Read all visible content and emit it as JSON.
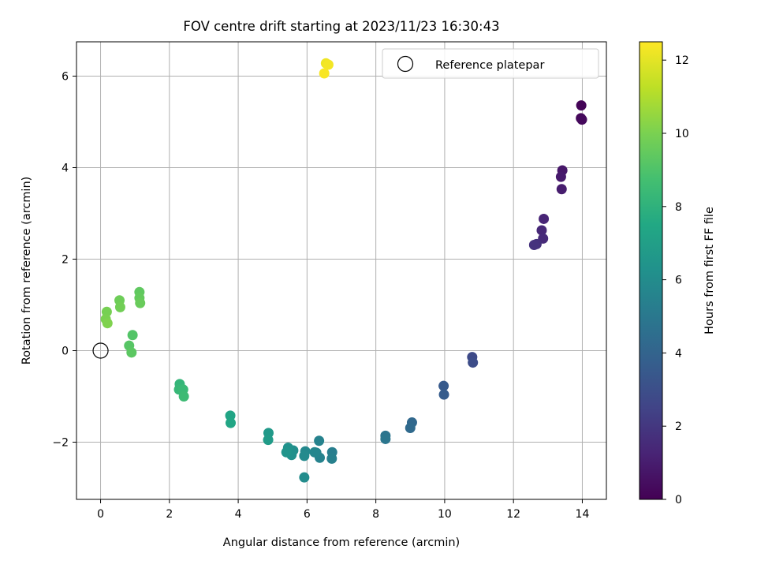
{
  "chart_data": {
    "type": "scatter",
    "title": "FOV centre drift starting at 2023/11/23 16:30:43",
    "xlabel": "Angular distance from reference (arcmin)",
    "ylabel": "Rotation from reference (arcmin)",
    "xlim": [
      -0.7,
      14.7
    ],
    "ylim": [
      -3.25,
      6.75
    ],
    "x_ticks": [
      0,
      2,
      4,
      6,
      8,
      10,
      12,
      14
    ],
    "y_ticks": [
      -2,
      0,
      2,
      4,
      6
    ],
    "grid": true,
    "legend": {
      "position": "top-right",
      "entries": [
        "Reference platepar"
      ]
    },
    "reference_point": {
      "x": 0,
      "y": 0
    },
    "colorbar": {
      "label": "Hours from first FF file",
      "range": [
        0,
        12.5
      ],
      "ticks": [
        0,
        2,
        4,
        6,
        8,
        10,
        12
      ],
      "colormap": "viridis"
    },
    "points": [
      {
        "x": 13.97,
        "y": 5.36,
        "h": 0.1
      },
      {
        "x": 13.96,
        "y": 5.08,
        "h": 0.2
      },
      {
        "x": 13.99,
        "y": 5.05,
        "h": 0.3
      },
      {
        "x": 13.42,
        "y": 3.94,
        "h": 0.8
      },
      {
        "x": 13.38,
        "y": 3.8,
        "h": 0.9
      },
      {
        "x": 13.4,
        "y": 3.53,
        "h": 1.0
      },
      {
        "x": 12.88,
        "y": 2.88,
        "h": 1.3
      },
      {
        "x": 12.82,
        "y": 2.63,
        "h": 1.4
      },
      {
        "x": 12.86,
        "y": 2.45,
        "h": 1.5
      },
      {
        "x": 12.67,
        "y": 2.33,
        "h": 1.7
      },
      {
        "x": 12.6,
        "y": 2.31,
        "h": 1.8
      },
      {
        "x": 10.8,
        "y": -0.14,
        "h": 2.8
      },
      {
        "x": 10.82,
        "y": -0.26,
        "h": 2.9
      },
      {
        "x": 9.97,
        "y": -0.77,
        "h": 3.5
      },
      {
        "x": 9.98,
        "y": -0.96,
        "h": 3.6
      },
      {
        "x": 9.05,
        "y": -1.57,
        "h": 4.2
      },
      {
        "x": 9.0,
        "y": -1.69,
        "h": 4.3
      },
      {
        "x": 8.28,
        "y": -1.86,
        "h": 4.8
      },
      {
        "x": 8.28,
        "y": -1.93,
        "h": 4.9
      },
      {
        "x": 6.73,
        "y": -2.22,
        "h": 5.3
      },
      {
        "x": 6.72,
        "y": -2.36,
        "h": 5.4
      },
      {
        "x": 6.35,
        "y": -1.97,
        "h": 5.5
      },
      {
        "x": 6.37,
        "y": -2.34,
        "h": 5.5
      },
      {
        "x": 6.27,
        "y": -2.23,
        "h": 5.6
      },
      {
        "x": 6.22,
        "y": -2.22,
        "h": 5.7
      },
      {
        "x": 5.95,
        "y": -2.2,
        "h": 5.8
      },
      {
        "x": 5.92,
        "y": -2.3,
        "h": 5.9
      },
      {
        "x": 5.92,
        "y": -2.77,
        "h": 6.0
      },
      {
        "x": 5.6,
        "y": -2.18,
        "h": 6.1
      },
      {
        "x": 5.55,
        "y": -2.28,
        "h": 6.2
      },
      {
        "x": 5.45,
        "y": -2.12,
        "h": 6.3
      },
      {
        "x": 5.4,
        "y": -2.22,
        "h": 6.4
      },
      {
        "x": 4.88,
        "y": -1.8,
        "h": 6.7
      },
      {
        "x": 4.87,
        "y": -1.95,
        "h": 6.8
      },
      {
        "x": 3.77,
        "y": -1.42,
        "h": 7.3
      },
      {
        "x": 3.78,
        "y": -1.58,
        "h": 7.4
      },
      {
        "x": 2.3,
        "y": -0.73,
        "h": 8.2
      },
      {
        "x": 2.28,
        "y": -0.85,
        "h": 8.3
      },
      {
        "x": 2.4,
        "y": -0.85,
        "h": 8.4
      },
      {
        "x": 2.42,
        "y": -1.0,
        "h": 8.5
      },
      {
        "x": 0.93,
        "y": 0.34,
        "h": 9.1
      },
      {
        "x": 0.83,
        "y": 0.11,
        "h": 9.2
      },
      {
        "x": 0.9,
        "y": -0.04,
        "h": 9.3
      },
      {
        "x": 1.13,
        "y": 1.28,
        "h": 9.4
      },
      {
        "x": 1.13,
        "y": 1.15,
        "h": 9.5
      },
      {
        "x": 1.15,
        "y": 1.04,
        "h": 9.6
      },
      {
        "x": 0.55,
        "y": 1.1,
        "h": 9.7
      },
      {
        "x": 0.57,
        "y": 0.95,
        "h": 9.8
      },
      {
        "x": 0.18,
        "y": 0.85,
        "h": 9.9
      },
      {
        "x": 0.15,
        "y": 0.69,
        "h": 10.0
      },
      {
        "x": 0.2,
        "y": 0.6,
        "h": 10.1
      },
      {
        "x": 6.55,
        "y": 6.28,
        "h": 12.2
      },
      {
        "x": 6.62,
        "y": 6.25,
        "h": 12.3
      },
      {
        "x": 6.5,
        "y": 6.06,
        "h": 12.4
      }
    ]
  }
}
